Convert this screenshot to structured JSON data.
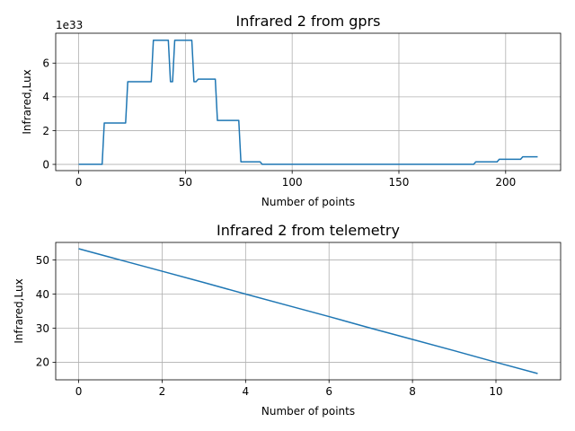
{
  "chart_data": [
    {
      "type": "line",
      "title": "Infrared 2 from gprs",
      "xlabel": "Number of points",
      "ylabel": "Infrared,Lux",
      "offset_label": "1e33",
      "xlim": [
        -10.75,
        225.75
      ],
      "ylim": [
        -0.37,
        7.77
      ],
      "xticks": [
        0,
        50,
        100,
        150,
        200
      ],
      "yticks": [
        0,
        2,
        4,
        6
      ],
      "grid": true,
      "series": [
        {
          "x": [
            0,
            11,
            12,
            22,
            23,
            34,
            35,
            42,
            43,
            44,
            45,
            53,
            54,
            55,
            56,
            64,
            65,
            75,
            76,
            85,
            86,
            185,
            186,
            196,
            197,
            207,
            208,
            215
          ],
          "y": [
            0,
            0,
            2.45,
            2.45,
            4.9,
            4.9,
            7.35,
            7.35,
            4.9,
            4.9,
            7.35,
            7.35,
            4.9,
            4.9,
            5.05,
            5.05,
            2.6,
            2.6,
            0.15,
            0.15,
            0,
            0,
            0.15,
            0.15,
            0.3,
            0.3,
            0.45,
            0.45
          ]
        }
      ]
    },
    {
      "type": "line",
      "title": "Infrared 2 from telemetry",
      "xlabel": "Number of points",
      "ylabel": "Infrared,Lux",
      "xlim": [
        -0.55,
        11.55
      ],
      "ylim": [
        14.85,
        55.15
      ],
      "xticks": [
        0,
        2,
        4,
        6,
        8,
        10
      ],
      "yticks": [
        20,
        30,
        40,
        50
      ],
      "grid": true,
      "series": [
        {
          "x": [
            0,
            1,
            2,
            3,
            4,
            5,
            6,
            7,
            8,
            9,
            10,
            11
          ],
          "y": [
            53.3,
            50.0,
            46.7,
            43.4,
            40.0,
            36.7,
            33.4,
            30.0,
            26.7,
            23.4,
            20.0,
            16.7
          ]
        }
      ]
    }
  ]
}
